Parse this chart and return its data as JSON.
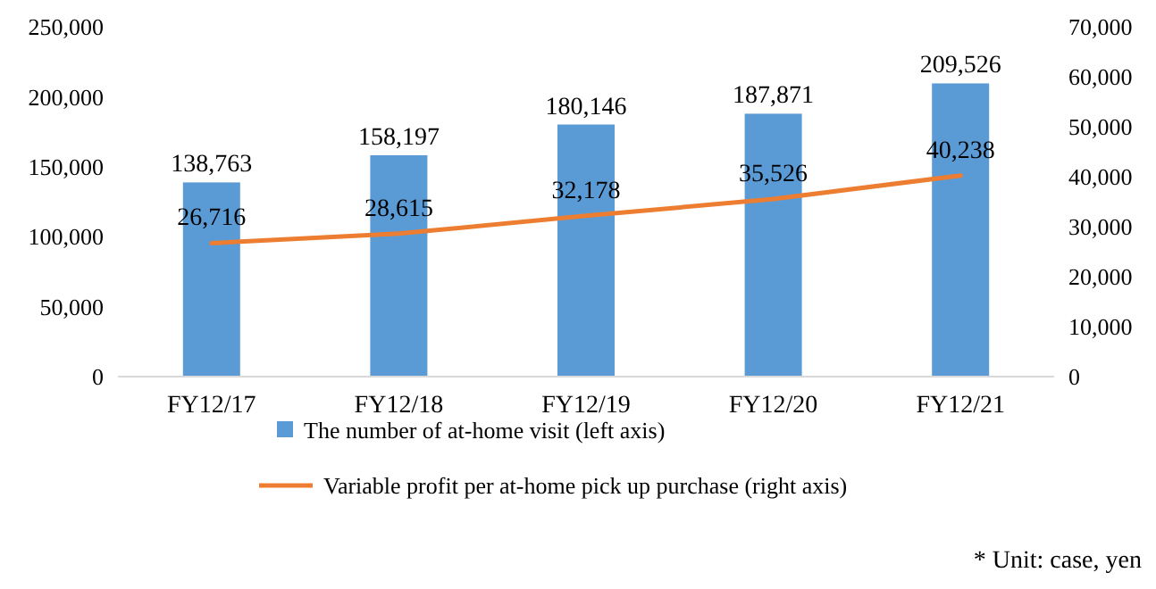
{
  "chart_data": {
    "type": "bar",
    "categories": [
      "FY12/17",
      "FY12/18",
      "FY12/19",
      "FY12/20",
      "FY12/21"
    ],
    "series": [
      {
        "name": "The number of at-home visit (left axis)",
        "color": "#5b9bd5",
        "values": [
          138763,
          158197,
          180146,
          187871,
          209526
        ],
        "value_labels": [
          "138,763",
          "158,197",
          "180,146",
          "187,871",
          "209,526"
        ]
      },
      {
        "name": "Variable profit per at-home pick up purchase (right axis)",
        "type": "line",
        "axis": "y2",
        "color": "#ed7d31",
        "values": [
          26716,
          28615,
          32178,
          35526,
          40238
        ],
        "value_labels": [
          "26,716",
          "28,615",
          "32,178",
          "35,526",
          "40,238"
        ]
      }
    ],
    "ylim": [
      0,
      250000
    ],
    "yticks": [
      {
        "value": 0,
        "label": "0"
      },
      {
        "value": 50000,
        "label": "50,000"
      },
      {
        "value": 100000,
        "label": "100,000"
      },
      {
        "value": 150000,
        "label": "150,000"
      },
      {
        "value": 200000,
        "label": "200,000"
      },
      {
        "value": 250000,
        "label": "250,000"
      }
    ],
    "y2lim": [
      0,
      70000
    ],
    "y2ticks": [
      {
        "value": 0,
        "label": "0"
      },
      {
        "value": 10000,
        "label": "10,000"
      },
      {
        "value": 20000,
        "label": "20,000"
      },
      {
        "value": 30000,
        "label": "30,000"
      },
      {
        "value": 40000,
        "label": "40,000"
      },
      {
        "value": 50000,
        "label": "50,000"
      },
      {
        "value": 60000,
        "label": "60,000"
      },
      {
        "value": 70000,
        "label": "70,000"
      }
    ],
    "grid": false,
    "legend": "bottom",
    "marker": "none",
    "line_style": "solid",
    "annotations": [
      "* Unit: case, yen"
    ]
  }
}
